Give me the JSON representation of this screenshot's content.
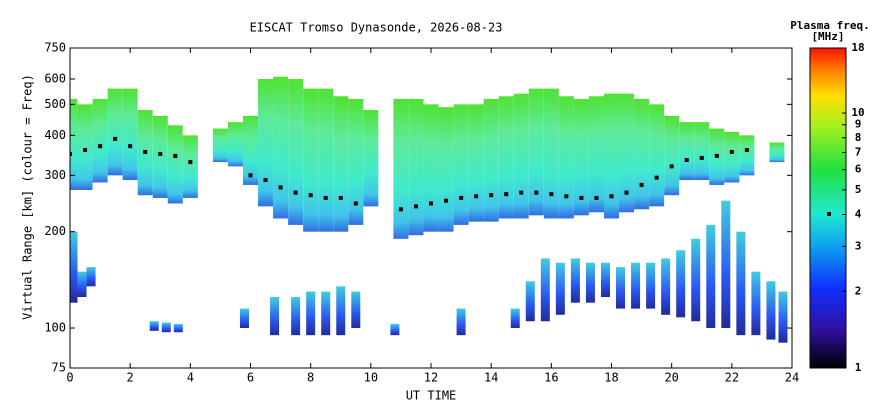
{
  "chart_data": {
    "type": "range-time",
    "title": "EISCAT Tromso Dynasonde, 2026-08-23",
    "xlabel": "UT TIME",
    "ylabel": "Virtual Range [km] (colour = Freq)",
    "xlim": [
      0,
      24
    ],
    "xticks": [
      0,
      2,
      4,
      6,
      8,
      10,
      12,
      14,
      16,
      18,
      20,
      22,
      24
    ],
    "ylim": [
      75,
      750
    ],
    "yticks": [
      75,
      100,
      200,
      300,
      400,
      500,
      600,
      750
    ],
    "ylog": true,
    "f_region": {
      "x": [
        0,
        0.5,
        1,
        1.5,
        2,
        2.5,
        3,
        3.5,
        4,
        5,
        5.5,
        6,
        6.5,
        7,
        7.5,
        8,
        8.5,
        9,
        9.5,
        10,
        11,
        11.5,
        12,
        12.5,
        13,
        13.5,
        14,
        14.5,
        15,
        15.5,
        16,
        16.5,
        17,
        17.5,
        18,
        18.5,
        19,
        19.5,
        20,
        20.5,
        21,
        21.5,
        22,
        22.5,
        23.5
      ],
      "low": [
        270,
        270,
        285,
        300,
        290,
        260,
        255,
        245,
        255,
        330,
        320,
        280,
        240,
        220,
        210,
        200,
        200,
        200,
        210,
        240,
        190,
        195,
        200,
        200,
        210,
        215,
        215,
        220,
        220,
        225,
        220,
        220,
        225,
        230,
        220,
        230,
        235,
        240,
        260,
        290,
        290,
        280,
        285,
        300,
        330
      ],
      "high": [
        520,
        500,
        520,
        560,
        560,
        480,
        460,
        430,
        400,
        420,
        440,
        460,
        600,
        610,
        600,
        560,
        560,
        530,
        520,
        480,
        520,
        520,
        500,
        490,
        500,
        500,
        520,
        530,
        540,
        560,
        560,
        530,
        520,
        530,
        540,
        540,
        520,
        500,
        460,
        440,
        440,
        420,
        410,
        400,
        380
      ]
    },
    "e_region": {
      "x": [
        0.1,
        0.4,
        0.7,
        2.8,
        3.2,
        3.6,
        5.8,
        6.8,
        7.5,
        8,
        8.5,
        9,
        9.5,
        10.8,
        13,
        14.8,
        15.3,
        15.8,
        16.3,
        16.8,
        17.3,
        17.8,
        18.3,
        18.8,
        19.3,
        19.8,
        20.3,
        20.8,
        21.3,
        21.8,
        22.3,
        22.8,
        23.3,
        23.7
      ],
      "low": [
        120,
        125,
        135,
        98,
        97,
        97,
        100,
        95,
        95,
        95,
        95,
        95,
        100,
        95,
        95,
        100,
        105,
        105,
        110,
        120,
        120,
        125,
        115,
        115,
        115,
        110,
        108,
        105,
        100,
        100,
        95,
        95,
        92,
        90
      ],
      "high": [
        200,
        150,
        155,
        105,
        104,
        103,
        115,
        125,
        125,
        130,
        130,
        135,
        130,
        103,
        115,
        115,
        140,
        165,
        160,
        165,
        160,
        160,
        155,
        160,
        160,
        165,
        175,
        190,
        210,
        250,
        200,
        150,
        140,
        130
      ]
    },
    "trace": {
      "x": [
        0,
        0.5,
        1,
        1.5,
        2,
        2.5,
        3,
        3.5,
        4,
        6,
        6.5,
        7,
        7.5,
        8,
        8.5,
        9,
        9.5,
        11,
        11.5,
        12,
        12.5,
        13,
        13.5,
        14,
        14.5,
        15,
        15.5,
        16,
        16.5,
        17,
        17.5,
        18,
        18.5,
        19,
        19.5,
        20,
        20.5,
        21,
        21.5,
        22,
        22.5
      ],
      "y": [
        350,
        360,
        370,
        390,
        370,
        355,
        350,
        345,
        330,
        300,
        290,
        275,
        265,
        260,
        255,
        255,
        245,
        235,
        240,
        245,
        250,
        255,
        258,
        260,
        262,
        265,
        265,
        262,
        258,
        255,
        255,
        258,
        265,
        280,
        295,
        320,
        335,
        340,
        345,
        355,
        360
      ]
    },
    "colorbar": {
      "title": [
        "Plasma freq.",
        "[MHz]"
      ],
      "lim": [
        1,
        18
      ],
      "ticks": [
        1,
        2,
        3,
        4,
        5,
        6,
        7,
        8,
        9,
        10,
        18
      ],
      "log": true
    }
  }
}
